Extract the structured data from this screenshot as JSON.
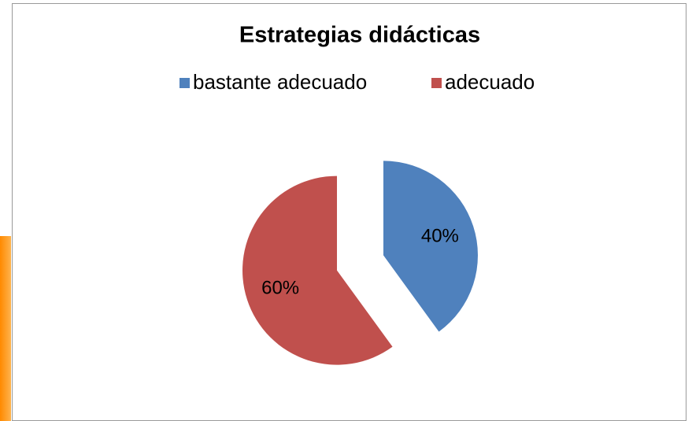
{
  "chart_data": {
    "type": "pie",
    "title": "Estrategias didácticas",
    "categories": [
      "bastante adecuado",
      "adecuado"
    ],
    "values": [
      40,
      60
    ],
    "value_labels": [
      "40%",
      "60%"
    ],
    "colors": [
      "#4f81bd",
      "#c0504d"
    ],
    "legend": "top",
    "exploded": true
  }
}
